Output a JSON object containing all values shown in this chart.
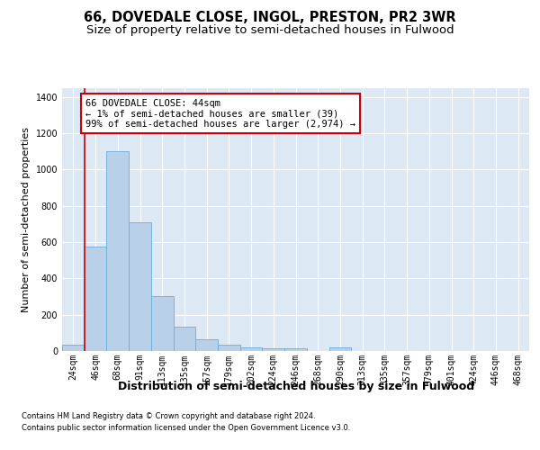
{
  "title": "66, DOVEDALE CLOSE, INGOL, PRESTON, PR2 3WR",
  "subtitle": "Size of property relative to semi-detached houses in Fulwood",
  "xlabel": "Distribution of semi-detached houses by size in Fulwood",
  "ylabel": "Number of semi-detached properties",
  "categories": [
    "24sqm",
    "46sqm",
    "68sqm",
    "91sqm",
    "113sqm",
    "135sqm",
    "157sqm",
    "179sqm",
    "202sqm",
    "224sqm",
    "246sqm",
    "268sqm",
    "290sqm",
    "313sqm",
    "335sqm",
    "357sqm",
    "379sqm",
    "401sqm",
    "424sqm",
    "446sqm",
    "468sqm"
  ],
  "values": [
    35,
    575,
    1100,
    710,
    300,
    135,
    65,
    35,
    20,
    15,
    15,
    0,
    20,
    0,
    0,
    0,
    0,
    0,
    0,
    0,
    0
  ],
  "bar_color": "#b8d0e8",
  "bar_edge_color": "#6aadda",
  "annotation_box_text": "66 DOVEDALE CLOSE: 44sqm\n← 1% of semi-detached houses are smaller (39)\n99% of semi-detached houses are larger (2,974) →",
  "annotation_box_color": "#ffffff",
  "annotation_box_edge_color": "#cc0000",
  "vline_color": "#cc0000",
  "vline_x": 0.5,
  "ylim": [
    0,
    1450
  ],
  "yticks": [
    0,
    200,
    400,
    600,
    800,
    1000,
    1200,
    1400
  ],
  "footer_line1": "Contains HM Land Registry data © Crown copyright and database right 2024.",
  "footer_line2": "Contains public sector information licensed under the Open Government Licence v3.0.",
  "bg_color": "#ffffff",
  "plot_bg_color": "#dce9f5",
  "grid_color": "#ffffff",
  "title_fontsize": 10.5,
  "subtitle_fontsize": 9.5,
  "xlabel_fontsize": 9,
  "ylabel_fontsize": 8,
  "tick_fontsize": 7,
  "ann_fontsize": 7.5,
  "footer_fontsize": 6
}
